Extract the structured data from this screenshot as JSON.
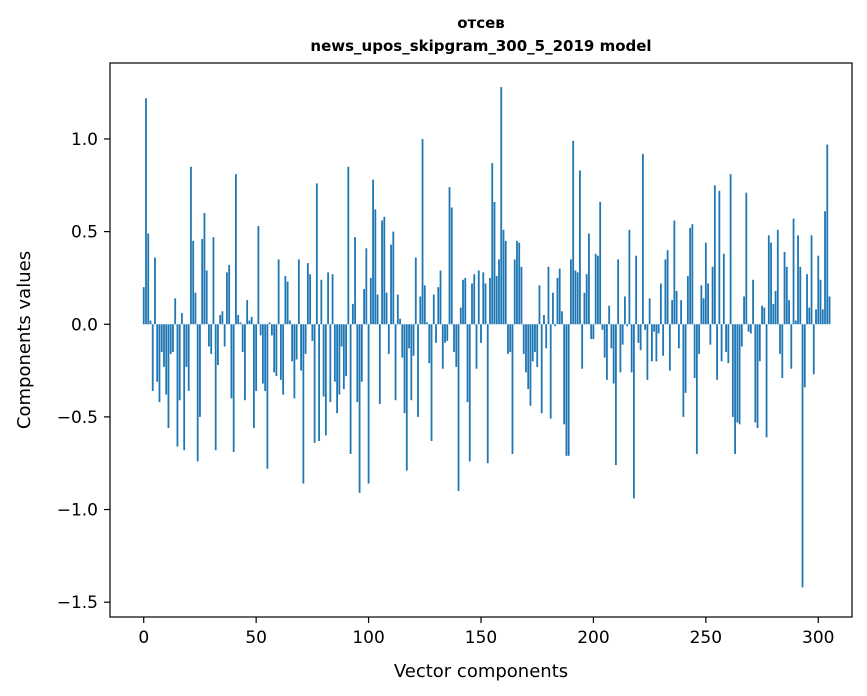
{
  "chart_data": {
    "type": "bar",
    "title_line1": "отсев",
    "title_line2": "news_upos_skipgram_300_5_2019 model",
    "xlabel": "Vector components",
    "ylabel": "Components values",
    "xlim": [
      -15,
      315
    ],
    "ylim": [
      -1.58,
      1.41
    ],
    "xticks": [
      0,
      50,
      100,
      150,
      200,
      250,
      300
    ],
    "xtick_labels": [
      "0",
      "50",
      "100",
      "150",
      "200",
      "250",
      "300"
    ],
    "yticks": [
      -1.5,
      -1.0,
      -0.5,
      0.0,
      0.5,
      1.0
    ],
    "ytick_labels": [
      "−1.5",
      "−1.0",
      "−0.5",
      "0.0",
      "0.5",
      "1.0"
    ],
    "bar_color": "#1f77b4",
    "values": [
      0.2,
      1.22,
      0.49,
      0.02,
      -0.36,
      0.36,
      -0.31,
      -0.42,
      -0.15,
      -0.23,
      -0.38,
      -0.56,
      -0.16,
      -0.15,
      0.14,
      -0.66,
      -0.41,
      0.06,
      -0.68,
      -0.23,
      -0.36,
      0.85,
      0.45,
      0.17,
      -0.74,
      -0.5,
      0.46,
      0.6,
      0.29,
      -0.12,
      -0.16,
      0.47,
      -0.68,
      -0.22,
      0.05,
      0.07,
      -0.12,
      0.28,
      0.32,
      -0.4,
      -0.69,
      0.81,
      0.05,
      0.01,
      -0.15,
      -0.41,
      0.13,
      0.02,
      0.04,
      -0.56,
      -0.36,
      0.53,
      -0.06,
      -0.32,
      -0.36,
      -0.78,
      0.01,
      -0.06,
      -0.26,
      -0.28,
      0.35,
      -0.3,
      -0.38,
      0.26,
      0.23,
      0.02,
      -0.2,
      -0.4,
      -0.19,
      0.35,
      -0.25,
      -0.86,
      -0.16,
      0.33,
      0.27,
      -0.09,
      -0.64,
      0.76,
      -0.63,
      0.24,
      -0.39,
      -0.6,
      0.28,
      -0.42,
      0.27,
      -0.31,
      -0.48,
      -0.38,
      -0.12,
      -0.35,
      -0.28,
      0.85,
      -0.7,
      0.11,
      0.47,
      -0.42,
      -0.91,
      -0.31,
      0.19,
      0.41,
      -0.86,
      0.25,
      0.78,
      0.62,
      0.16,
      -0.43,
      0.56,
      0.58,
      0.17,
      -0.16,
      0.43,
      0.5,
      -0.41,
      0.16,
      0.03,
      -0.18,
      -0.48,
      -0.79,
      -0.13,
      -0.41,
      -0.17,
      0.36,
      -0.5,
      0.15,
      1.0,
      0.21,
      0.01,
      -0.21,
      -0.63,
      0.16,
      -0.1,
      0.2,
      0.29,
      -0.24,
      -0.1,
      -0.09,
      0.74,
      0.63,
      -0.15,
      -0.23,
      -0.9,
      0.09,
      0.24,
      0.25,
      -0.42,
      -0.74,
      0.22,
      0.27,
      -0.24,
      0.29,
      -0.1,
      0.28,
      0.22,
      -0.75,
      0.25,
      0.87,
      0.66,
      0.26,
      0.35,
      1.28,
      0.51,
      0.45,
      -0.16,
      -0.15,
      -0.7,
      0.35,
      0.45,
      0.44,
      0.31,
      -0.16,
      -0.26,
      -0.35,
      -0.44,
      -0.2,
      -0.15,
      -0.23,
      0.21,
      -0.48,
      0.05,
      -0.13,
      0.31,
      -0.51,
      0.17,
      -0.01,
      0.25,
      0.3,
      0.07,
      -0.54,
      -0.71,
      -0.71,
      0.35,
      0.99,
      0.29,
      0.28,
      0.83,
      -0.24,
      0.17,
      0.27,
      0.49,
      -0.08,
      -0.08,
      0.38,
      0.37,
      0.66,
      -0.03,
      -0.18,
      -0.3,
      0.1,
      -0.13,
      -0.32,
      -0.76,
      0.35,
      -0.26,
      -0.11,
      0.15,
      -0.01,
      0.51,
      -0.26,
      -0.94,
      0.37,
      -0.1,
      -0.14,
      0.92,
      -0.03,
      -0.3,
      0.14,
      -0.2,
      -0.04,
      -0.2,
      -0.05,
      0.22,
      -0.17,
      0.35,
      0.4,
      -0.25,
      0.13,
      0.56,
      0.18,
      -0.13,
      0.13,
      -0.5,
      -0.37,
      0.26,
      0.52,
      0.54,
      -0.29,
      -0.7,
      -0.16,
      0.21,
      0.14,
      0.44,
      0.22,
      -0.11,
      0.31,
      0.75,
      -0.3,
      0.72,
      -0.2,
      0.38,
      -0.15,
      -0.21,
      0.81,
      -0.5,
      -0.7,
      -0.53,
      -0.54,
      -0.12,
      0.15,
      0.71,
      -0.04,
      -0.05,
      0.24,
      -0.53,
      -0.56,
      -0.2,
      0.1,
      0.09,
      -0.61,
      0.48,
      0.44,
      0.11,
      0.18,
      0.51,
      -0.16,
      -0.29,
      0.39,
      0.31,
      0.13,
      -0.24,
      0.57,
      0.02,
      0.48,
      0.31,
      -1.42,
      -0.34,
      0.27,
      0.09,
      0.48,
      -0.27,
      0.08,
      0.37,
      0.24,
      0.08,
      0.61,
      0.97,
      0.15
    ]
  }
}
